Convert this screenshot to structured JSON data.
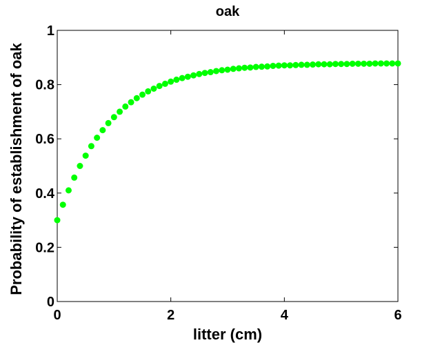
{
  "chart_data": {
    "type": "scatter",
    "title": "oak",
    "xlabel": "litter (cm)",
    "ylabel": "Probability of establishment of oak",
    "xlim": [
      0,
      6
    ],
    "ylim": [
      0,
      1
    ],
    "xticks": [
      "0",
      "2",
      "4",
      "6"
    ],
    "yticks": [
      "0",
      "0.2",
      "0.4",
      "0.6",
      "0.8",
      "1"
    ],
    "grid": false,
    "marker_color": "#00ff00",
    "series": [
      {
        "x": [
          0,
          0.1,
          0.2,
          0.3,
          0.4,
          0.5,
          0.6,
          0.7,
          0.8,
          0.9,
          1.0,
          1.1,
          1.2,
          1.3,
          1.4,
          1.5,
          1.6,
          1.7,
          1.8,
          1.9,
          2.0,
          2.1,
          2.2,
          2.3,
          2.4,
          2.5,
          2.6,
          2.7,
          2.8,
          2.9,
          3.0,
          3.1,
          3.2,
          3.3,
          3.4,
          3.5,
          3.6,
          3.7,
          3.8,
          3.9,
          4.0,
          4.1,
          4.2,
          4.3,
          4.4,
          4.5,
          4.6,
          4.7,
          4.8,
          4.9,
          5.0,
          5.1,
          5.2,
          5.3,
          5.4,
          5.5,
          5.6,
          5.7,
          5.8,
          5.9,
          6.0
        ],
        "y": [
          0.3,
          0.357,
          0.41,
          0.457,
          0.5,
          0.538,
          0.573,
          0.604,
          0.632,
          0.658,
          0.68,
          0.7,
          0.719,
          0.735,
          0.75,
          0.763,
          0.775,
          0.785,
          0.795,
          0.803,
          0.811,
          0.818,
          0.824,
          0.829,
          0.834,
          0.839,
          0.843,
          0.846,
          0.85,
          0.853,
          0.855,
          0.858,
          0.86,
          0.862,
          0.863,
          0.865,
          0.866,
          0.867,
          0.869,
          0.87,
          0.871,
          0.871,
          0.872,
          0.873,
          0.873,
          0.874,
          0.875,
          0.875,
          0.875,
          0.876,
          0.876,
          0.876,
          0.877,
          0.877,
          0.877,
          0.877,
          0.878,
          0.878,
          0.878,
          0.878,
          0.878
        ]
      }
    ]
  }
}
